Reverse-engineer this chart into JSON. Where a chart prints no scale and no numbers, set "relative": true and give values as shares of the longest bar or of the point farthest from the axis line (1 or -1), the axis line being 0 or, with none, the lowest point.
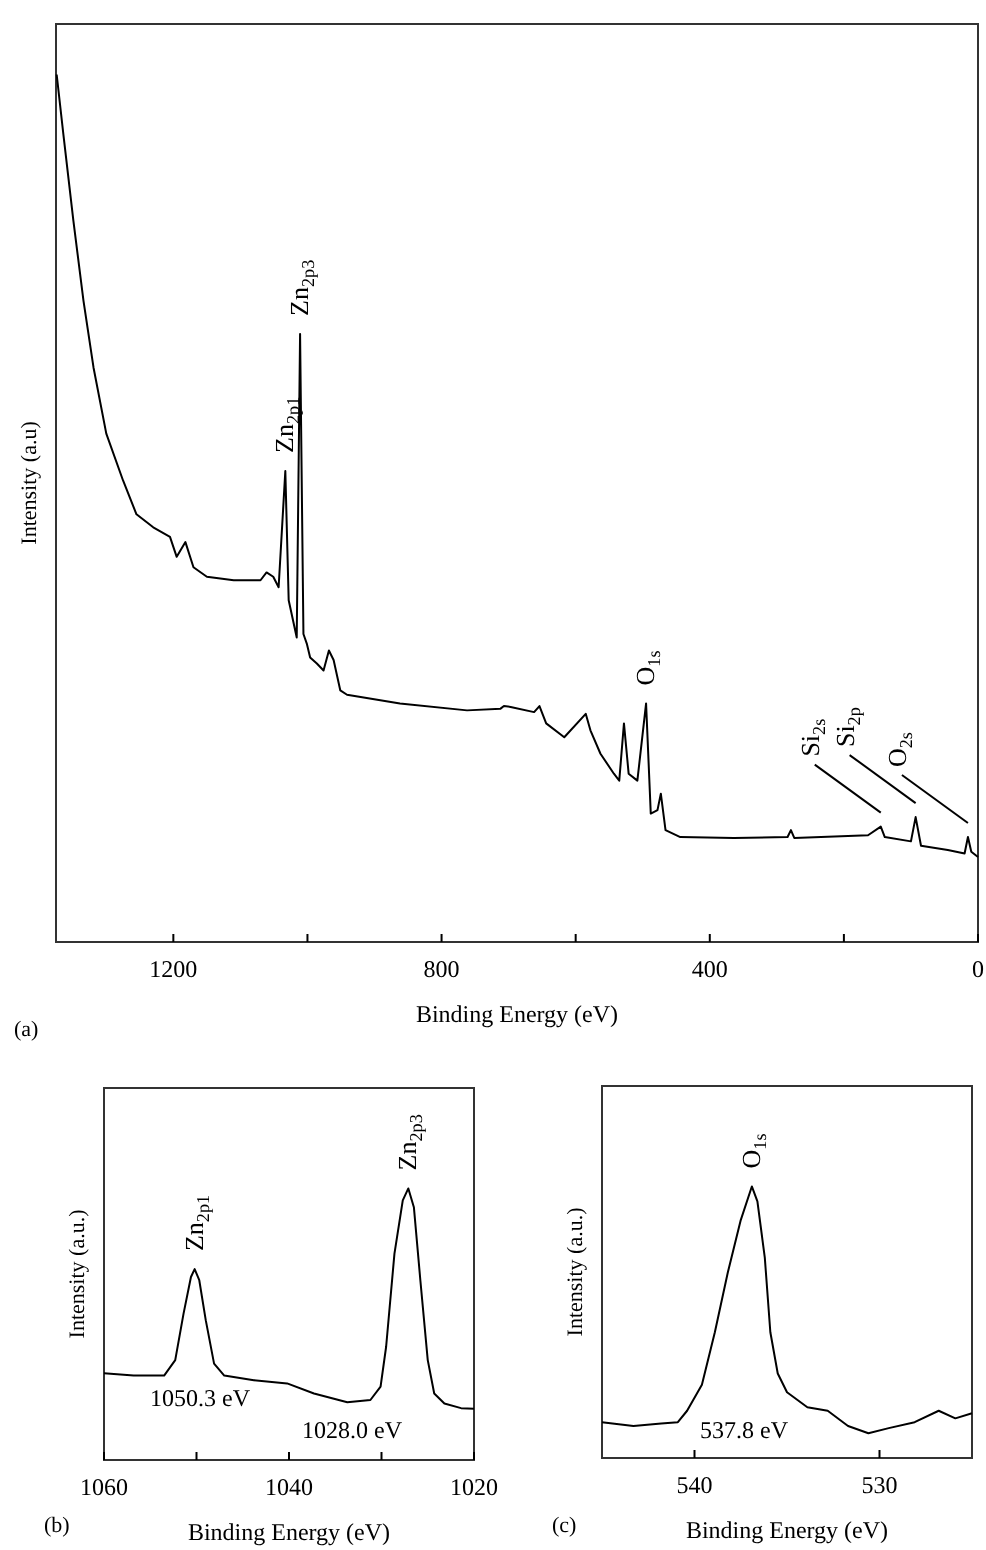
{
  "chart_data": [
    {
      "type": "line",
      "relative": true,
      "xlabel": "Binding Energy (eV)",
      "ylabel": "Intensity (a.u)",
      "xlim": [
        1375,
        0
      ],
      "xticks": [
        1200,
        800,
        400,
        0,
        {
          "value": 1000,
          "label": null
        },
        {
          "value": 600,
          "label": null
        },
        {
          "value": 200,
          "label": null
        }
      ],
      "tick_labels": "x",
      "grid": false,
      "marker": "none",
      "line_style": "solid",
      "x": [
        1374,
        1364,
        1349,
        1334,
        1319,
        1300,
        1275,
        1255,
        1230,
        1205,
        1195,
        1182,
        1170,
        1150,
        1110,
        1070,
        1061,
        1051,
        1043,
        1033,
        1028,
        1016,
        1011,
        1006,
        1001,
        996,
        986,
        976,
        968,
        961,
        951,
        941,
        862,
        762,
        712,
        707,
        697,
        662,
        654,
        644,
        617,
        585,
        578,
        563,
        543,
        535,
        528,
        521,
        508,
        495,
        488,
        478,
        473,
        466,
        444,
        364,
        284,
        279,
        274,
        164,
        145,
        139,
        100,
        93,
        85,
        45,
        20,
        15,
        10,
        0
      ],
      "series": [
        {
          "color": "#000000",
          "values": [
            1.0,
            0.931,
            0.831,
            0.739,
            0.662,
            0.586,
            0.532,
            0.493,
            0.478,
            0.467,
            0.444,
            0.461,
            0.432,
            0.421,
            0.417,
            0.417,
            0.426,
            0.421,
            0.409,
            0.543,
            0.394,
            0.351,
            0.701,
            0.355,
            0.344,
            0.328,
            0.321,
            0.313,
            0.336,
            0.325,
            0.29,
            0.285,
            0.275,
            0.267,
            0.269,
            0.272,
            0.271,
            0.265,
            0.272,
            0.252,
            0.236,
            0.263,
            0.244,
            0.217,
            0.194,
            0.186,
            0.252,
            0.194,
            0.186,
            0.275,
            0.148,
            0.152,
            0.171,
            0.129,
            0.121,
            0.12,
            0.121,
            0.129,
            0.12,
            0.123,
            0.133,
            0.121,
            0.116,
            0.144,
            0.111,
            0.106,
            0.102,
            0.121,
            0.104,
            0.098
          ]
        }
      ],
      "annotations": [
        {
          "text": "Zn$_{2p1}$",
          "x": 1033,
          "y": 0.543
        },
        {
          "text": "Zn$_{2p3}$",
          "x": 1011,
          "y": 0.701
        },
        {
          "text": "O$_{1s}$",
          "x": 495,
          "y": 0.275
        },
        {
          "text": "Si$_{2s}$",
          "x": 145,
          "y": 0.133
        },
        {
          "text": "Si$_{2p}$",
          "x": 93,
          "y": 0.144
        },
        {
          "text": "O$_{2s}$",
          "x": 15,
          "y": 0.121
        },
        "(a)"
      ]
    },
    {
      "type": "line",
      "relative": true,
      "xlabel": "Binding Energy (eV)",
      "ylabel": "Intensity (a.u.)",
      "xlim": [
        1060,
        1020
      ],
      "xticks": [
        1060,
        1040,
        1020,
        {
          "value": 1050,
          "label": null
        },
        {
          "value": 1030,
          "label": null
        }
      ],
      "tick_labels": "x",
      "grid": false,
      "marker": "none",
      "line_style": "solid",
      "x": [
        1060,
        1056.8,
        1053.5,
        1052.3,
        1051.4,
        1050.6,
        1050.2,
        1049.7,
        1049.0,
        1048.1,
        1047.0,
        1043.8,
        1040.2,
        1037.3,
        1033.7,
        1031.2,
        1030.1,
        1029.5,
        1028.6,
        1027.7,
        1027.1,
        1026.5,
        1025.8,
        1025.0,
        1024.3,
        1023.2,
        1021.4,
        1020
      ],
      "series": [
        {
          "color": "#000000",
          "values": [
            0.319,
            0.311,
            0.311,
            0.368,
            0.539,
            0.674,
            0.703,
            0.662,
            0.515,
            0.355,
            0.311,
            0.294,
            0.282,
            0.245,
            0.213,
            0.221,
            0.27,
            0.417,
            0.76,
            0.956,
            1.0,
            0.931,
            0.662,
            0.368,
            0.245,
            0.208,
            0.191,
            0.189
          ]
        }
      ],
      "annotations": [
        {
          "text": "Zn$_{2p1}$",
          "x": 1050.2,
          "y": 0.703
        },
        {
          "text": "Zn$_{2p3}$",
          "x": 1027.1,
          "y": 1.0
        },
        "1050.3 eV",
        "1028.0 eV",
        "(b)"
      ]
    },
    {
      "type": "line",
      "relative": true,
      "xlabel": "Binding Energy (eV)",
      "ylabel": "Intensity (a.u.)",
      "xlim": [
        545,
        525
      ],
      "xticks": [
        540,
        530
      ],
      "tick_labels": "x",
      "grid": false,
      "marker": "none",
      "line_style": "solid",
      "x": [
        545,
        543.3,
        541.8,
        540.9,
        540.4,
        539.6,
        538.9,
        538.2,
        537.5,
        536.9,
        536.6,
        536.2,
        535.9,
        535.5,
        535.0,
        533.9,
        532.8,
        531.7,
        530.6,
        529.5,
        528.1,
        526.8,
        525.9,
        525
      ],
      "series": [
        {
          "color": "#000000",
          "values": [
            0.132,
            0.118,
            0.127,
            0.132,
            0.174,
            0.27,
            0.463,
            0.683,
            0.876,
            1.0,
            0.945,
            0.738,
            0.463,
            0.311,
            0.242,
            0.187,
            0.174,
            0.118,
            0.091,
            0.11,
            0.132,
            0.174,
            0.146,
            0.165
          ]
        }
      ],
      "annotations": [
        {
          "text": "O$_{1s}$",
          "x": 536.9,
          "y": 1.0
        },
        "537.8 eV",
        "(c)"
      ]
    }
  ]
}
